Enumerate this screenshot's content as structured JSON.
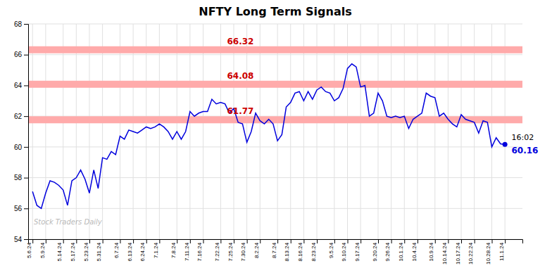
{
  "chart_data": {
    "type": "line",
    "title": "NFTY Long Term Signals",
    "watermark": "Stock Traders Daily",
    "categories": [
      "5.6.24",
      null,
      null,
      "5.9.24",
      null,
      null,
      null,
      "5.14.24",
      null,
      null,
      "5.17.24",
      null,
      null,
      "5.23.24",
      null,
      null,
      "5.31.24",
      null,
      null,
      null,
      "6.7.24",
      null,
      null,
      "6.13.24",
      null,
      null,
      "6.24.24",
      null,
      null,
      "7.1.24",
      null,
      null,
      null,
      "7.8.24",
      null,
      null,
      "7.11.24",
      null,
      null,
      "7.16.24",
      null,
      null,
      null,
      "7.22.24",
      null,
      null,
      "7.25.24",
      null,
      null,
      "7.30.24",
      null,
      null,
      "8.2.24",
      null,
      null,
      null,
      "8.7.24",
      null,
      null,
      "8.13.24",
      null,
      null,
      "8.16.24",
      null,
      null,
      "8.23.24",
      null,
      null,
      null,
      "9.5.24",
      null,
      null,
      "9.10.24",
      null,
      null,
      "9.17.24",
      null,
      null,
      null,
      "9.20.24",
      null,
      null,
      "9.26.24",
      null,
      null,
      "10.1.24",
      null,
      null,
      "10.4.24",
      null,
      null,
      null,
      "10.9.24",
      null,
      null,
      "10.14.24",
      null,
      null,
      "10.17.24",
      null,
      null,
      "10.22.24",
      null,
      null,
      null,
      "10.28.24",
      null,
      null,
      "11.1.24"
    ],
    "values": [
      57.1,
      56.2,
      56.0,
      57.0,
      57.8,
      57.7,
      57.5,
      57.2,
      56.2,
      57.8,
      58.0,
      58.5,
      57.9,
      57.0,
      58.5,
      57.3,
      59.3,
      59.2,
      59.7,
      59.5,
      60.7,
      60.5,
      61.1,
      61.0,
      60.9,
      61.1,
      61.3,
      61.2,
      61.3,
      61.5,
      61.3,
      61.0,
      60.5,
      61.0,
      60.5,
      61.0,
      62.3,
      62.0,
      62.2,
      62.3,
      62.3,
      63.1,
      62.8,
      62.9,
      62.8,
      62.2,
      62.5,
      61.6,
      61.5,
      60.3,
      61.0,
      62.2,
      61.7,
      61.5,
      61.8,
      61.5,
      60.4,
      60.8,
      62.6,
      62.9,
      63.5,
      63.6,
      63.0,
      63.6,
      63.1,
      63.7,
      63.9,
      63.6,
      63.5,
      63.0,
      63.2,
      63.8,
      65.1,
      65.4,
      65.2,
      63.9,
      64.0,
      62.0,
      62.2,
      63.5,
      63.0,
      62.0,
      61.9,
      62.0,
      61.9,
      62.0,
      61.2,
      61.8,
      62.0,
      62.2,
      63.5,
      63.3,
      63.2,
      62.0,
      62.2,
      61.8,
      61.5,
      61.3,
      62.1,
      61.8,
      61.7,
      61.6,
      60.9,
      61.7,
      61.6,
      60.0,
      60.6,
      60.2,
      60.16
    ],
    "color": "#0000dd",
    "hlines": [
      {
        "value": 66.32,
        "label": "66.32",
        "color": "#ffaaaa",
        "label_color": "#cc0000"
      },
      {
        "value": 64.08,
        "label": "64.08",
        "color": "#ffaaaa",
        "label_color": "#cc0000"
      },
      {
        "value": 61.77,
        "label": "61.77",
        "color": "#ffaaaa",
        "label_color": "#cc0000"
      }
    ],
    "annotations": [
      {
        "text": "16:02"
      },
      {
        "text": "60.16",
        "value": 60.16,
        "color": "#0000dd"
      }
    ],
    "ylim": [
      54,
      68
    ],
    "yticks": [
      54,
      56,
      58,
      60,
      62,
      64,
      66,
      68
    ],
    "grid": true
  }
}
